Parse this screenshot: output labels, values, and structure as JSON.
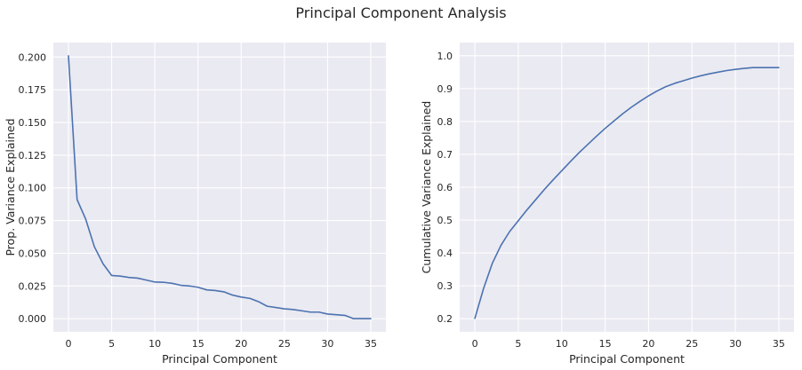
{
  "figure": {
    "title": "Principal Component Analysis"
  },
  "chart_data": [
    {
      "type": "line",
      "title": "",
      "xlabel": "Principal Component",
      "ylabel": "Prop. Variance Explained",
      "xlim": [
        -1.75,
        36.75
      ],
      "ylim": [
        -0.0101,
        0.2111
      ],
      "xticks": [
        0,
        5,
        10,
        15,
        20,
        25,
        30,
        35
      ],
      "xtick_labels": [
        "0",
        "5",
        "10",
        "15",
        "20",
        "25",
        "30",
        "35"
      ],
      "yticks": [
        0.0,
        0.025,
        0.05,
        0.075,
        0.1,
        0.125,
        0.15,
        0.175,
        0.2
      ],
      "ytick_labels": [
        "0.000",
        "0.025",
        "0.050",
        "0.075",
        "0.100",
        "0.125",
        "0.150",
        "0.175",
        "0.200"
      ],
      "grid": true,
      "color": "#4c72b0",
      "x": [
        0,
        1,
        2,
        3,
        4,
        5,
        6,
        7,
        8,
        9,
        10,
        11,
        12,
        13,
        14,
        15,
        16,
        17,
        18,
        19,
        20,
        21,
        22,
        23,
        24,
        25,
        26,
        27,
        28,
        29,
        30,
        31,
        32,
        33,
        34,
        35
      ],
      "y": [
        0.201,
        0.091,
        0.076,
        0.055,
        0.042,
        0.033,
        0.0325,
        0.0315,
        0.031,
        0.0295,
        0.028,
        0.0278,
        0.027,
        0.0255,
        0.025,
        0.024,
        0.022,
        0.0215,
        0.0205,
        0.018,
        0.0165,
        0.0155,
        0.013,
        0.0095,
        0.0085,
        0.0075,
        0.007,
        0.006,
        0.005,
        0.005,
        0.0035,
        0.003,
        0.0025,
        0.0,
        0.0,
        0.0
      ]
    },
    {
      "type": "line",
      "title": "",
      "xlabel": "Principal Component",
      "ylabel": "Cumulative Variance Explained",
      "xlim": [
        -1.75,
        36.75
      ],
      "ylim": [
        0.16,
        1.04
      ],
      "xticks": [
        0,
        5,
        10,
        15,
        20,
        25,
        30,
        35
      ],
      "xtick_labels": [
        "0",
        "5",
        "10",
        "15",
        "20",
        "25",
        "30",
        "35"
      ],
      "yticks": [
        0.2,
        0.3,
        0.4,
        0.5,
        0.6,
        0.7,
        0.8,
        0.9,
        1.0
      ],
      "ytick_labels": [
        "0.2",
        "0.3",
        "0.4",
        "0.5",
        "0.6",
        "0.7",
        "0.8",
        "0.9",
        "1.0"
      ],
      "grid": true,
      "color": "#4c72b0",
      "x": [
        0,
        1,
        2,
        3,
        4,
        5,
        6,
        7,
        8,
        9,
        10,
        11,
        12,
        13,
        14,
        15,
        16,
        17,
        18,
        19,
        20,
        21,
        22,
        23,
        24,
        25,
        26,
        27,
        28,
        29,
        30,
        31,
        32,
        33,
        34,
        35
      ],
      "y": [
        0.201,
        0.292,
        0.368,
        0.423,
        0.465,
        0.498,
        0.531,
        0.562,
        0.593,
        0.622,
        0.65,
        0.678,
        0.705,
        0.73,
        0.755,
        0.779,
        0.801,
        0.823,
        0.843,
        0.861,
        0.878,
        0.893,
        0.906,
        0.916,
        0.924,
        0.932,
        0.939,
        0.945,
        0.95,
        0.955,
        0.9585,
        0.9615,
        0.964,
        0.964,
        0.964,
        0.964
      ]
    }
  ]
}
